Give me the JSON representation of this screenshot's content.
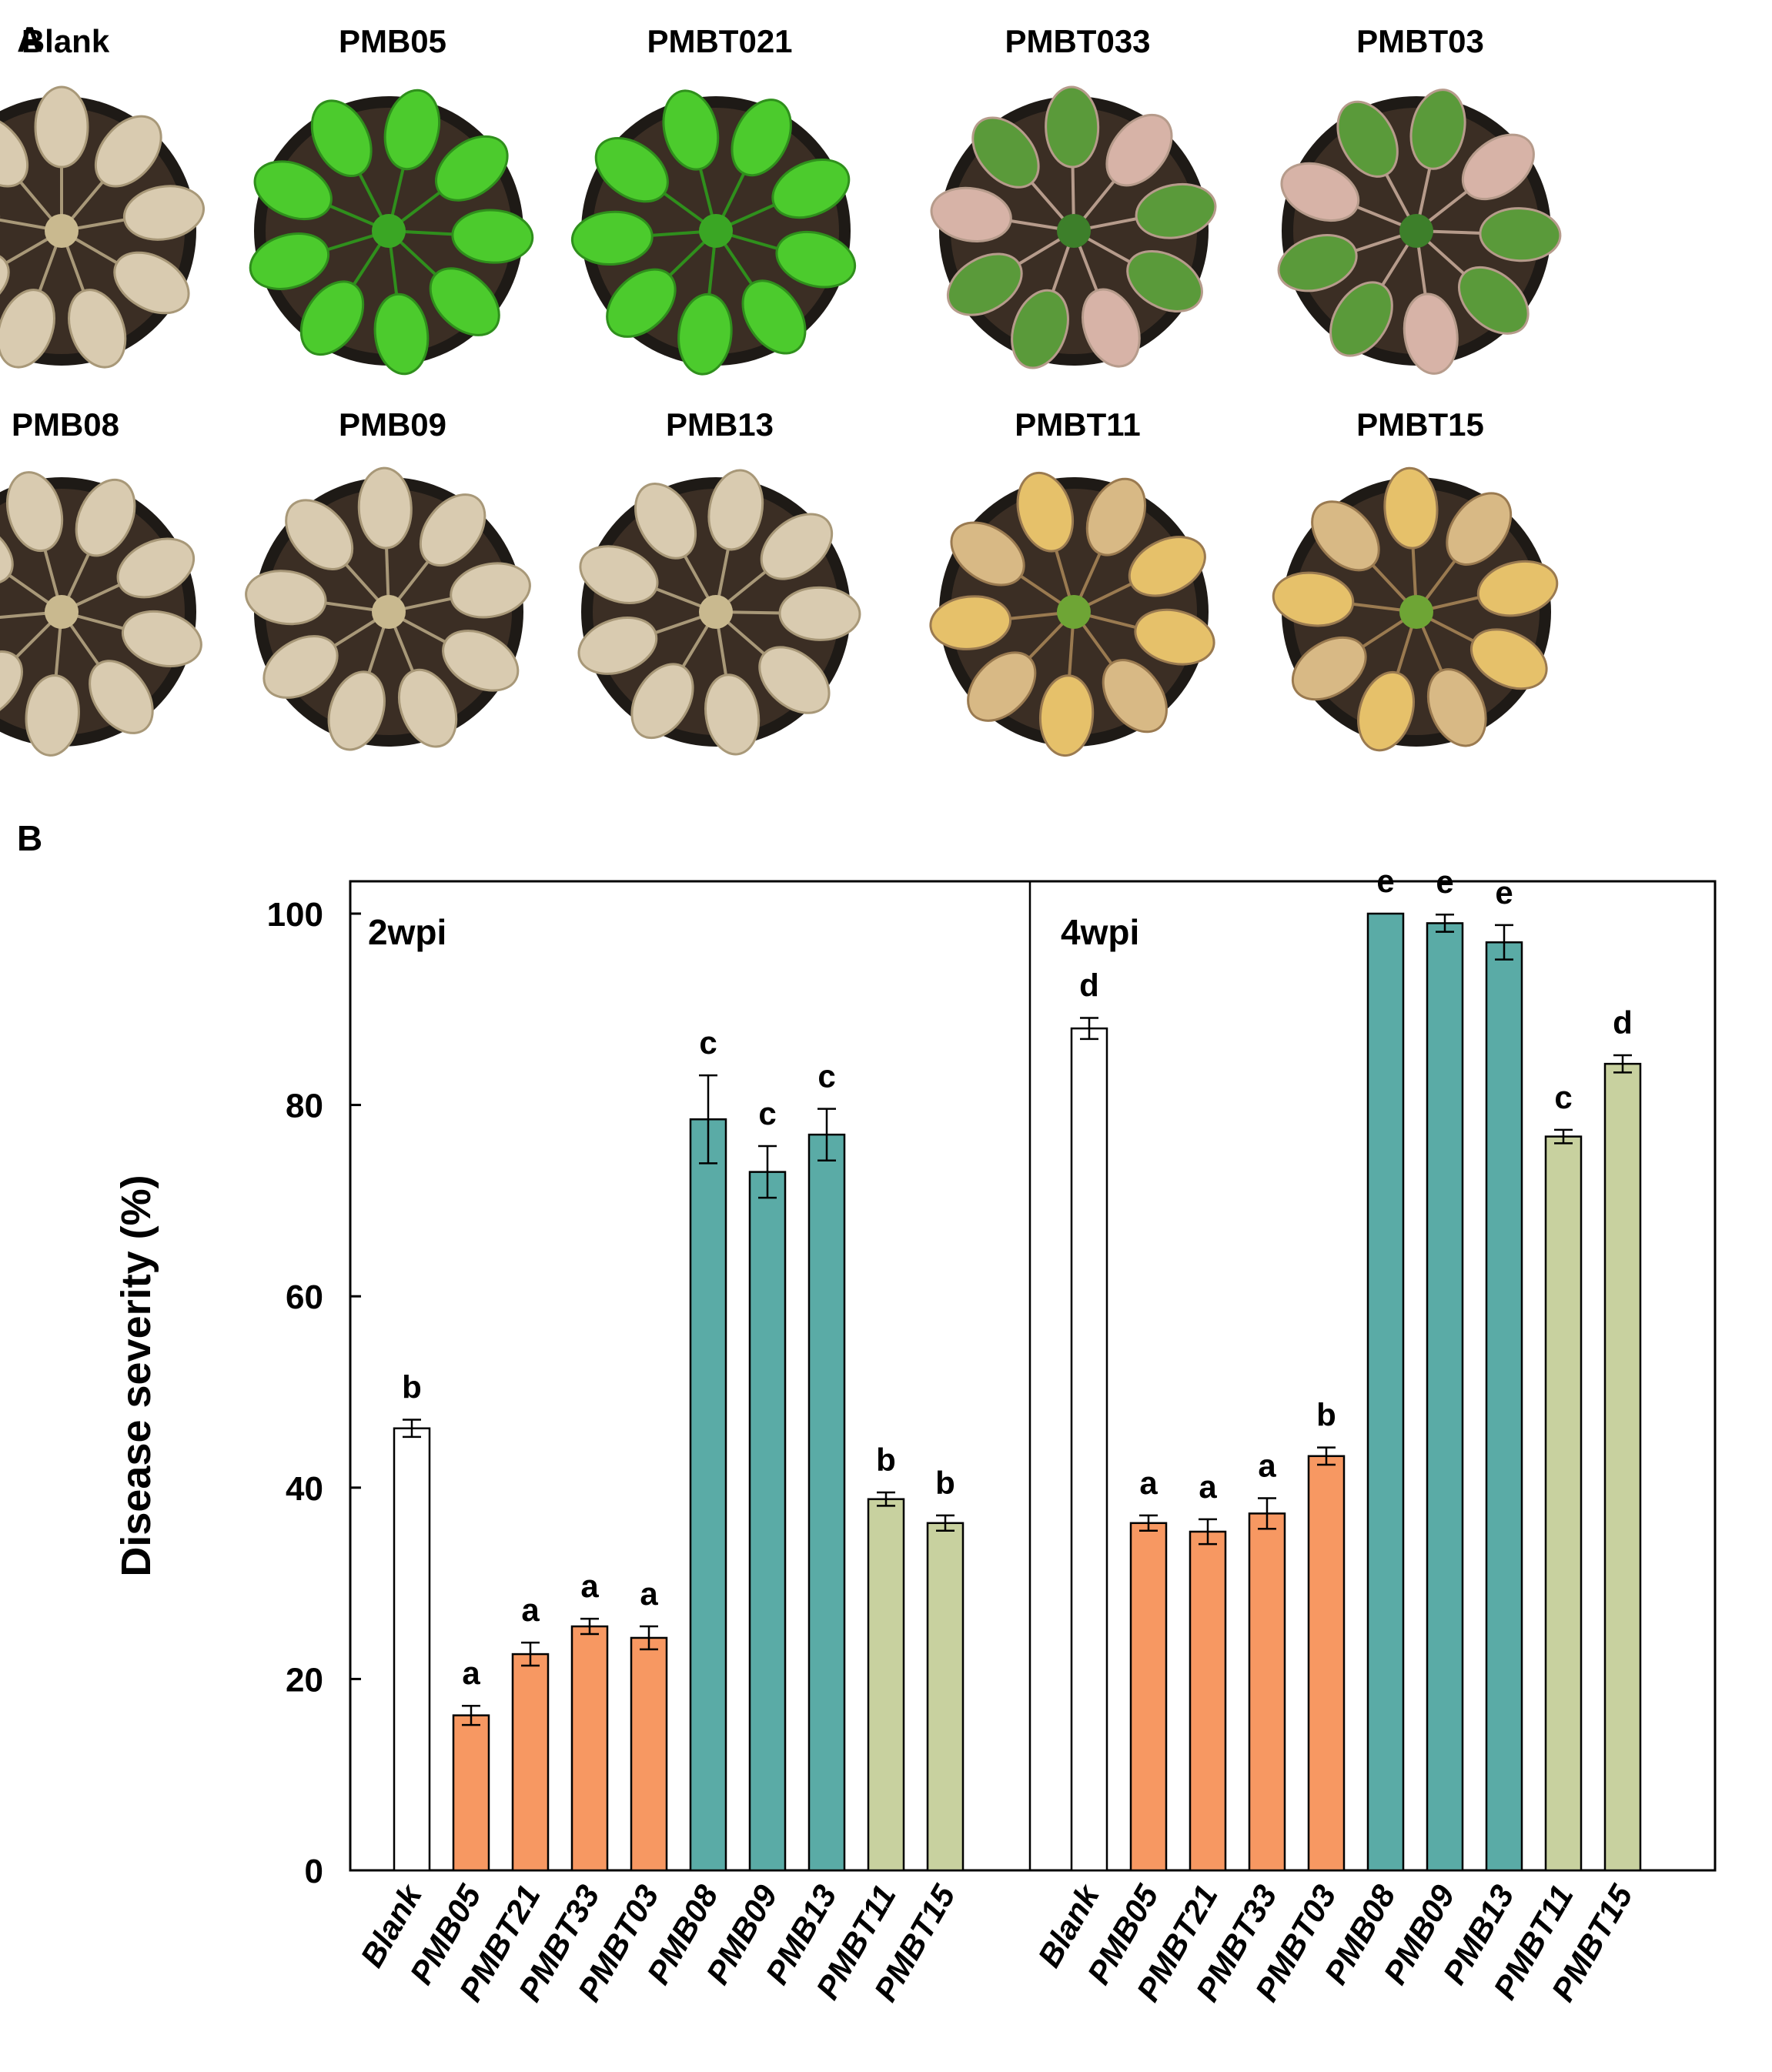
{
  "panel_a": {
    "letter": "A",
    "plants": [
      {
        "label": "Blank",
        "state": "dead"
      },
      {
        "label": "PMB05",
        "state": "healthy"
      },
      {
        "label": "PMBT021",
        "state": "healthy"
      },
      {
        "label": "PMBT033",
        "state": "mild"
      },
      {
        "label": "PMBT03",
        "state": "mild"
      },
      {
        "label": "PMB08",
        "state": "dead"
      },
      {
        "label": "PMB09",
        "state": "dead"
      },
      {
        "label": "PMB13",
        "state": "dead"
      },
      {
        "label": "PMBT11",
        "state": "severe"
      },
      {
        "label": "PMBT15",
        "state": "severe"
      }
    ]
  },
  "panel_b": {
    "letter": "B"
  },
  "chart_data": {
    "type": "bar",
    "ylabel": "Disease severity (%)",
    "ylim": [
      0,
      100
    ],
    "yticks": [
      0,
      20,
      40,
      60,
      80,
      100
    ],
    "colors": {
      "Blank": "#ffffff",
      "PMB05": "#f79862",
      "PMBT21": "#f79862",
      "PMBT33": "#f79862",
      "PMBT03": "#f79862",
      "PMB08": "#5aaba6",
      "PMB09": "#5aaba6",
      "PMB13": "#5aaba6",
      "PMBT11": "#c8d19f",
      "PMBT15": "#c8d19f"
    },
    "categories": [
      "Blank",
      "PMB05",
      "PMBT21",
      "PMBT33",
      "PMBT03",
      "PMB08",
      "PMB09",
      "PMB13",
      "PMBT11",
      "PMBT15"
    ],
    "groups": [
      {
        "name": "2wpi",
        "values": [
          46.2,
          16.2,
          22.6,
          25.5,
          24.3,
          78.5,
          73.0,
          76.9,
          38.8,
          36.3
        ],
        "errors": [
          0.9,
          1.0,
          1.2,
          0.8,
          1.2,
          4.6,
          2.7,
          2.7,
          0.7,
          0.8
        ],
        "letters": [
          "b",
          "a",
          "a",
          "a",
          "a",
          "c",
          "c",
          "c",
          "b",
          "b"
        ]
      },
      {
        "name": "4wpi",
        "values": [
          88.0,
          36.3,
          35.4,
          37.3,
          43.3,
          100.0,
          99.0,
          97.0,
          76.7,
          84.3
        ],
        "errors": [
          1.1,
          0.8,
          1.3,
          1.6,
          0.9,
          0.0,
          0.9,
          1.8,
          0.7,
          0.9
        ],
        "letters": [
          "d",
          "a",
          "a",
          "a",
          "b",
          "e",
          "e",
          "e",
          "c",
          "d"
        ]
      }
    ]
  }
}
